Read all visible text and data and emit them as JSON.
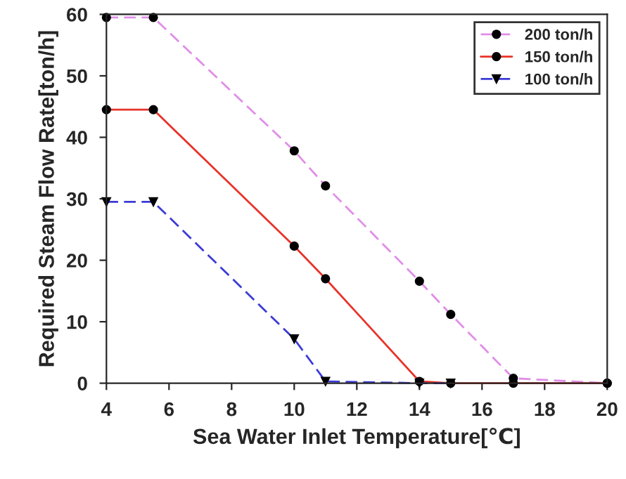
{
  "chart_data": {
    "type": "line",
    "xlabel": "Sea Water Inlet Temperature[℃]",
    "ylabel": "Required Steam Flow Rate[ton/h]",
    "x": [
      4,
      5.5,
      10,
      11,
      14,
      15,
      17,
      20
    ],
    "series": [
      {
        "name": "200 ton/h",
        "color": "#e08ee8",
        "marker": "circle",
        "line_style": "dashed",
        "values": [
          59.5,
          59.5,
          37.8,
          32.1,
          16.6,
          11.2,
          0.8,
          0
        ]
      },
      {
        "name": "150 ton/h",
        "color": "#e8332a",
        "marker": "circle",
        "line_style": "solid",
        "values": [
          44.5,
          44.5,
          22.3,
          17.0,
          0.3,
          0,
          0,
          0
        ]
      },
      {
        "name": "100 ton/h",
        "color": "#3b3bd6",
        "marker": "triangle",
        "line_style": "dashed",
        "values": [
          29.5,
          29.5,
          7.2,
          0.3,
          0,
          0,
          null,
          null
        ]
      }
    ],
    "xlim": [
      4,
      20
    ],
    "ylim": [
      0,
      60
    ],
    "xticks": [
      4,
      6,
      8,
      10,
      12,
      14,
      16,
      18,
      20
    ],
    "yticks": [
      0,
      10,
      20,
      30,
      40,
      50,
      60
    ],
    "grid": false,
    "legend": "top right"
  }
}
